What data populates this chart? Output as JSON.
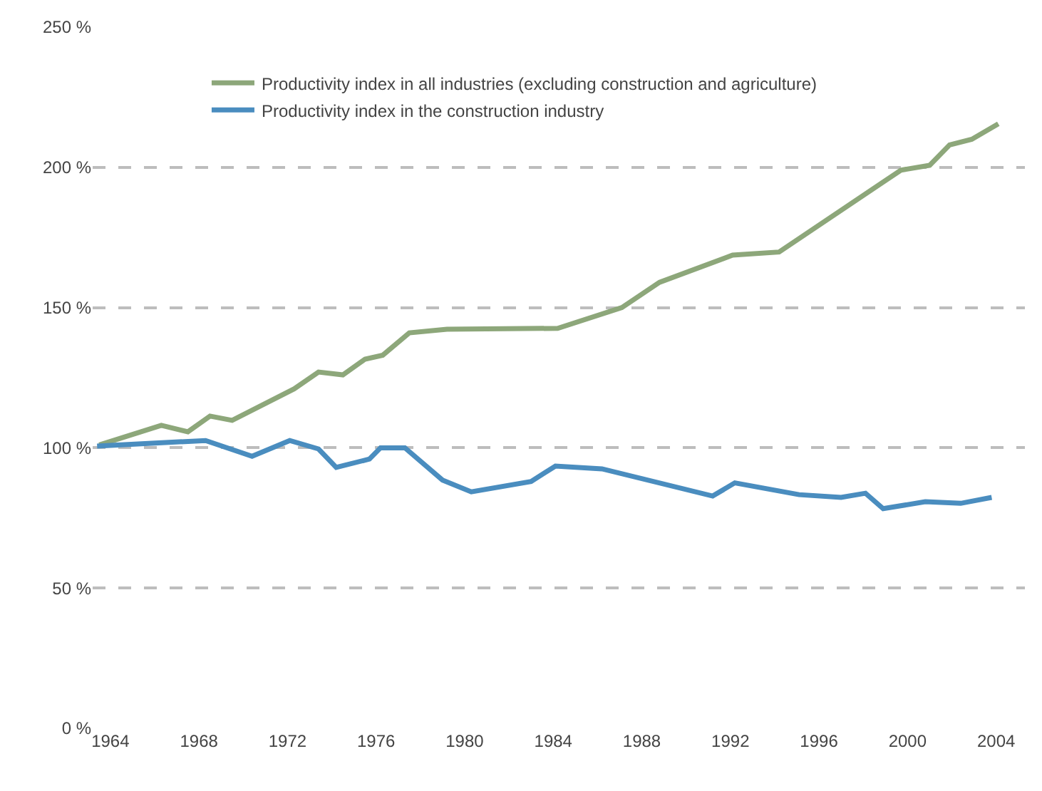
{
  "chart_data": {
    "type": "line",
    "xlim": [
      1963.2,
      2005.3
    ],
    "xticks": [
      1964,
      1968,
      1972,
      1976,
      1980,
      1984,
      1988,
      1992,
      1996,
      2000,
      2004
    ],
    "ylim": [
      0,
      250
    ],
    "yticks": [
      {
        "value": 0,
        "label": "0 %"
      },
      {
        "value": 50,
        "label": "50 %"
      },
      {
        "value": 100,
        "label": "100 %"
      },
      {
        "value": 150,
        "label": "150 %"
      },
      {
        "value": 200,
        "label": "200 %"
      },
      {
        "value": 250,
        "label": "250 %"
      }
    ],
    "grid": "y",
    "legend": "top left",
    "marker": "none",
    "line_style": "solid",
    "series": [
      {
        "name": "Productivity index in all industries (excluding construction and agriculture)",
        "color": "#8da77a",
        "x": [
          1963.5,
          1966.3,
          1967.5,
          1968.5,
          1969.5,
          1972.3,
          1973.4,
          1974.5,
          1975.5,
          1976.3,
          1977.5,
          1979.2,
          1984.2,
          1987.1,
          1988.8,
          1992.1,
          1994.2,
          1999.7,
          2001,
          2001.9,
          2002.9,
          2004.1
        ],
        "values": [
          101,
          108,
          105.7,
          111.3,
          109.8,
          121,
          127,
          126,
          131.6,
          133,
          141,
          142.3,
          142.6,
          150,
          159,
          168.7,
          169.8,
          199,
          200.7,
          208,
          210,
          215.5
        ]
      },
      {
        "name": "Productivity index in the construction industry",
        "color": "#4a8dbf",
        "x": [
          1963.4,
          1968.3,
          1970.4,
          1972.1,
          1973.4,
          1974.2,
          1975.7,
          1976.2,
          1977.3,
          1979,
          1980.3,
          1983,
          1984.1,
          1986.2,
          1991.2,
          1992.2,
          1995.1,
          1997,
          1998.1,
          1998.9,
          2000.8,
          2002.4,
          2003.8
        ],
        "values": [
          100.6,
          102.6,
          97,
          102.6,
          99.6,
          93,
          96,
          100,
          100,
          88.5,
          84.3,
          88,
          93.5,
          92.5,
          82.8,
          87.5,
          83.3,
          82.3,
          83.8,
          78.3,
          80.8,
          80.2,
          82.3
        ]
      }
    ]
  }
}
